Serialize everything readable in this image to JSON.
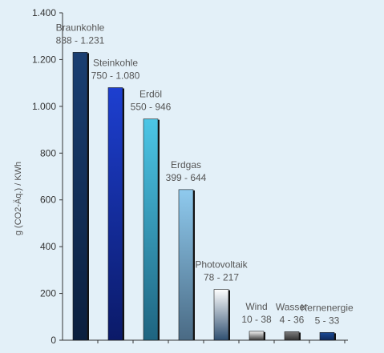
{
  "chart_data": {
    "type": "bar",
    "title": "",
    "xlabel": "",
    "ylabel": "g (CO2-Äq.) / KWh",
    "ylim": [
      0,
      1400
    ],
    "yticks": [
      0,
      200,
      400,
      600,
      800,
      1000,
      1200,
      1400
    ],
    "ytick_labels": [
      "0",
      "200",
      "400",
      "600",
      "800",
      "1.000",
      "1.200",
      "1.400"
    ],
    "grid": false,
    "legend": "none",
    "categories": [
      "Braunkohle",
      "Steinkohle",
      "Erdöl",
      "Erdgas",
      "Photovoltaik",
      "Wind",
      "Wasser",
      "Kernenergie"
    ],
    "ranges": [
      "838 - 1.231",
      "750 - 1.080",
      "550 - 946",
      "399 - 644",
      "78 - 217",
      "10 - 38",
      "4 - 36",
      "5 - 33"
    ],
    "values": [
      1231,
      1080,
      946,
      644,
      217,
      38,
      36,
      33
    ],
    "colors": [
      [
        "#1a3f72",
        "#0b1f3e"
      ],
      [
        "#1d3fd0",
        "#0b1a68"
      ],
      [
        "#4cc6e6",
        "#1e6480"
      ],
      [
        "#8fcaee",
        "#4a6a84"
      ],
      [
        "#ffffff",
        "#2f4f70"
      ],
      [
        "#f4f4f4",
        "#3a3a3a"
      ],
      [
        "#7c7c7c",
        "#333333"
      ],
      [
        "#1a4a96",
        "#0e2a5c"
      ]
    ]
  }
}
